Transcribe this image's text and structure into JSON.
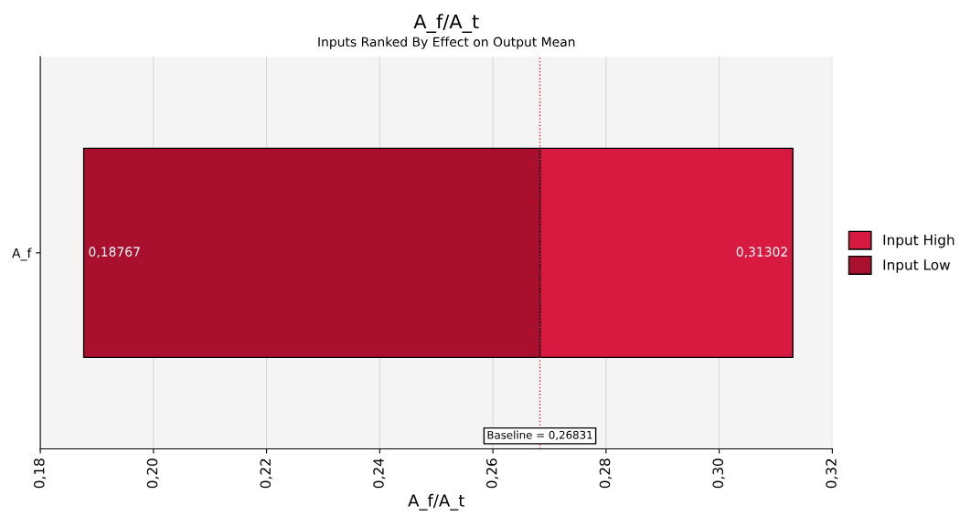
{
  "chart_data": {
    "type": "bar",
    "orientation": "horizontal",
    "title": "A_f/A_t",
    "subtitle": "Inputs Ranked By Effect on Output Mean",
    "xlabel": "A_f/A_t",
    "categories": [
      "A_f"
    ],
    "series": [
      {
        "name": "Input High",
        "color": "#d81a40",
        "values": [
          0.04471
        ],
        "base": [
          0.26831
        ]
      },
      {
        "name": "Input Low",
        "color": "#a8102e",
        "values": [
          0.08064
        ],
        "base": [
          0.18767
        ]
      }
    ],
    "annotations": [
      {
        "text": "0,18767",
        "x": 0.18767,
        "y": "A_f"
      },
      {
        "text": "0,31302",
        "x": 0.31302,
        "y": "A_f"
      }
    ],
    "xlim": [
      0.18,
      0.32
    ],
    "xticks": [
      {
        "value": 0.18,
        "label": "0,18"
      },
      {
        "value": 0.2,
        "label": "0,20"
      },
      {
        "value": 0.22,
        "label": "0,22"
      },
      {
        "value": 0.24,
        "label": "0,24"
      },
      {
        "value": 0.26,
        "label": "0,26"
      },
      {
        "value": 0.28,
        "label": "0,28"
      },
      {
        "value": 0.3,
        "label": "0,30"
      },
      {
        "value": 0.32,
        "label": "0,32"
      }
    ],
    "ref_lines": [
      {
        "axis": "x",
        "value": 0.26831,
        "label": "Baseline = 0,26831",
        "color": "#d81a40",
        "line_style": "dotted"
      }
    ],
    "grid": "x",
    "legend": "right"
  }
}
